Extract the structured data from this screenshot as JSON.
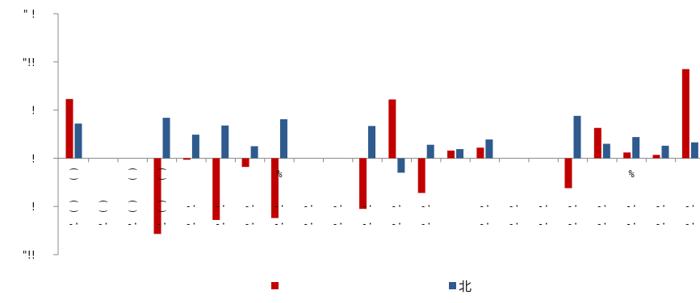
{
  "chart_data": {
    "type": "bar",
    "ytick_labels": [
      "\" !",
      "\"!!",
      "!",
      "!",
      "!",
      "\"!!"
    ],
    "ylim": [
      -200,
      300
    ],
    "grid": false,
    "legend_position": "bottom",
    "colors": {
      "series_a": "#c00000",
      "series_b": "#2e5a8e"
    },
    "categories_row1": [
      "⁐",
      "",
      "⁐",
      "⁐",
      "",
      "",
      "",
      "%",
      "",
      "",
      "",
      "",
      "",
      "",
      "",
      "",
      "",
      "",
      "",
      "%",
      "",
      "",
      "",
      "",
      "⁐"
    ],
    "categories_row2": [
      "⁐",
      "⁐",
      "⁐",
      "⁐",
      "-·",
      "-·",
      "-·",
      "-·",
      "-·",
      "-·",
      "-·",
      "-·",
      "-·",
      "",
      "-·",
      "-·",
      "-·",
      "-·",
      "-·",
      "-·",
      "-·",
      "-·",
      "-·",
      "-·",
      "-·"
    ],
    "categories_row3": [
      "-·",
      "-·",
      "-·",
      "-·",
      "-·",
      "-·",
      "-·",
      "-·",
      "-·",
      "-·",
      "-·",
      "-·",
      "-·",
      "",
      "-·",
      "-·",
      "-·",
      "-·",
      "-·",
      "-·",
      "-·",
      "-·",
      "-·",
      "-·",
      "-·"
    ],
    "series": [
      {
        "name": "",
        "values": [
          123,
          0,
          0,
          -157,
          -3,
          -128,
          -18,
          -124,
          0,
          0,
          -105,
          122,
          -72,
          16,
          22,
          0,
          0,
          -62,
          63,
          12,
          7,
          185,
          0,
          0,
          0
        ]
      },
      {
        "name": "北",
        "values": [
          72,
          0,
          0,
          84,
          49,
          68,
          25,
          81,
          0,
          0,
          67,
          -30,
          28,
          19,
          39,
          0,
          0,
          88,
          30,
          44,
          26,
          33,
          0,
          0,
          0
        ]
      }
    ]
  }
}
